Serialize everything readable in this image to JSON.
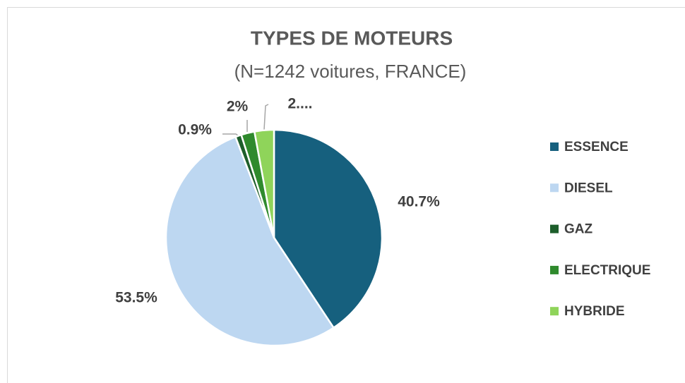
{
  "chart_data": {
    "type": "pie",
    "title": "TYPES DE MOTEURS",
    "subtitle": "(N=1242 voitures, FRANCE)",
    "categories": [
      "ESSENCE",
      "DIESEL",
      "GAZ",
      "ELECTRIQUE",
      "HYBRIDE"
    ],
    "values": [
      40.7,
      53.5,
      0.9,
      2,
      2.9
    ],
    "value_labels": [
      "40.7%",
      "53.5%",
      "0.9%",
      "2%",
      "2...."
    ],
    "colors": [
      "#16607e",
      "#bdd7f1",
      "#1d5e2b",
      "#2f8a2d",
      "#8fd45a"
    ],
    "legend": "right"
  }
}
